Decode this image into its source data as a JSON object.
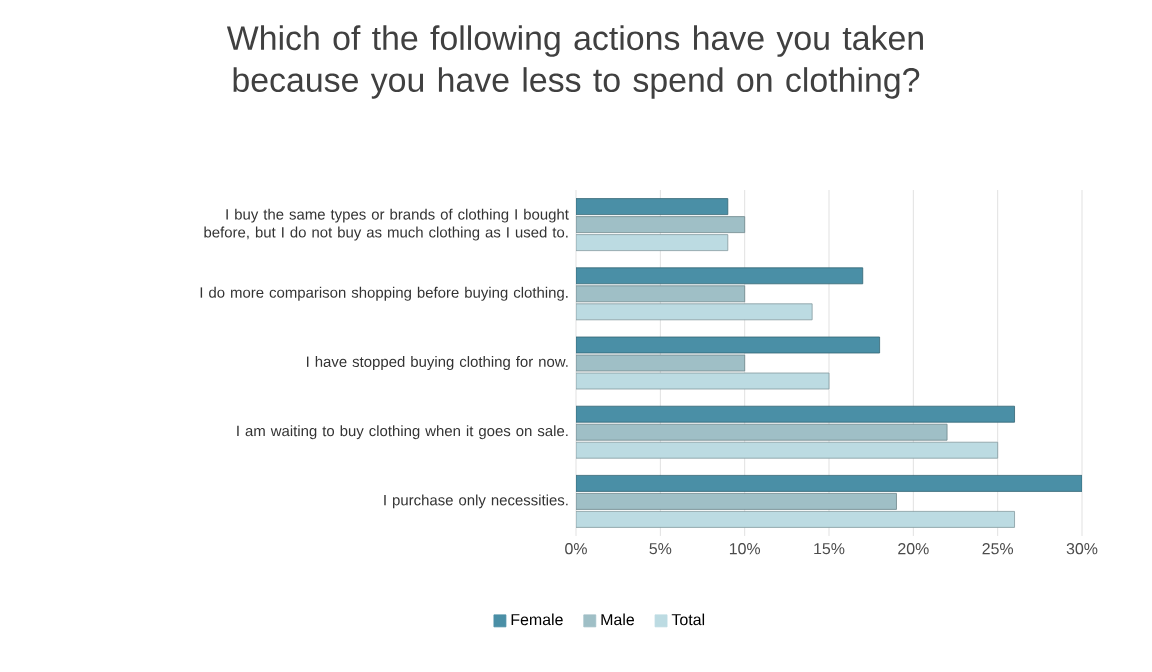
{
  "chart_data": {
    "type": "bar",
    "orientation": "horizontal",
    "title": "Which of the following actions have you taken because you have less to spend on clothing?",
    "categories": [
      "I buy the same types or brands of clothing I bought before, but I do not buy as much clothing as I used to.",
      "I do more comparison shopping before buying clothing.",
      "I have stopped buying clothing for now.",
      "I am waiting to buy clothing when it goes on sale.",
      "I purchase only necessities."
    ],
    "series": [
      {
        "name": "Female",
        "color": "#4a8fa6",
        "values": [
          9,
          17,
          18,
          26,
          30
        ]
      },
      {
        "name": "Male",
        "color": "#9fbfc6",
        "values": [
          10,
          10,
          10,
          22,
          19
        ]
      },
      {
        "name": "Total",
        "color": "#bcdbe2",
        "values": [
          9,
          14,
          15,
          25,
          26
        ]
      }
    ],
    "xlim": [
      0,
      30
    ],
    "xticks": [
      {
        "value": 0,
        "label": "0%"
      },
      {
        "value": 5,
        "label": "5%"
      },
      {
        "value": 10,
        "label": "10%"
      },
      {
        "value": 15,
        "label": "15%"
      },
      {
        "value": 20,
        "label": "20%"
      },
      {
        "value": 25,
        "label": "25%"
      },
      {
        "value": 30,
        "label": "30%"
      }
    ],
    "grid": "x",
    "legend": "bottom"
  }
}
